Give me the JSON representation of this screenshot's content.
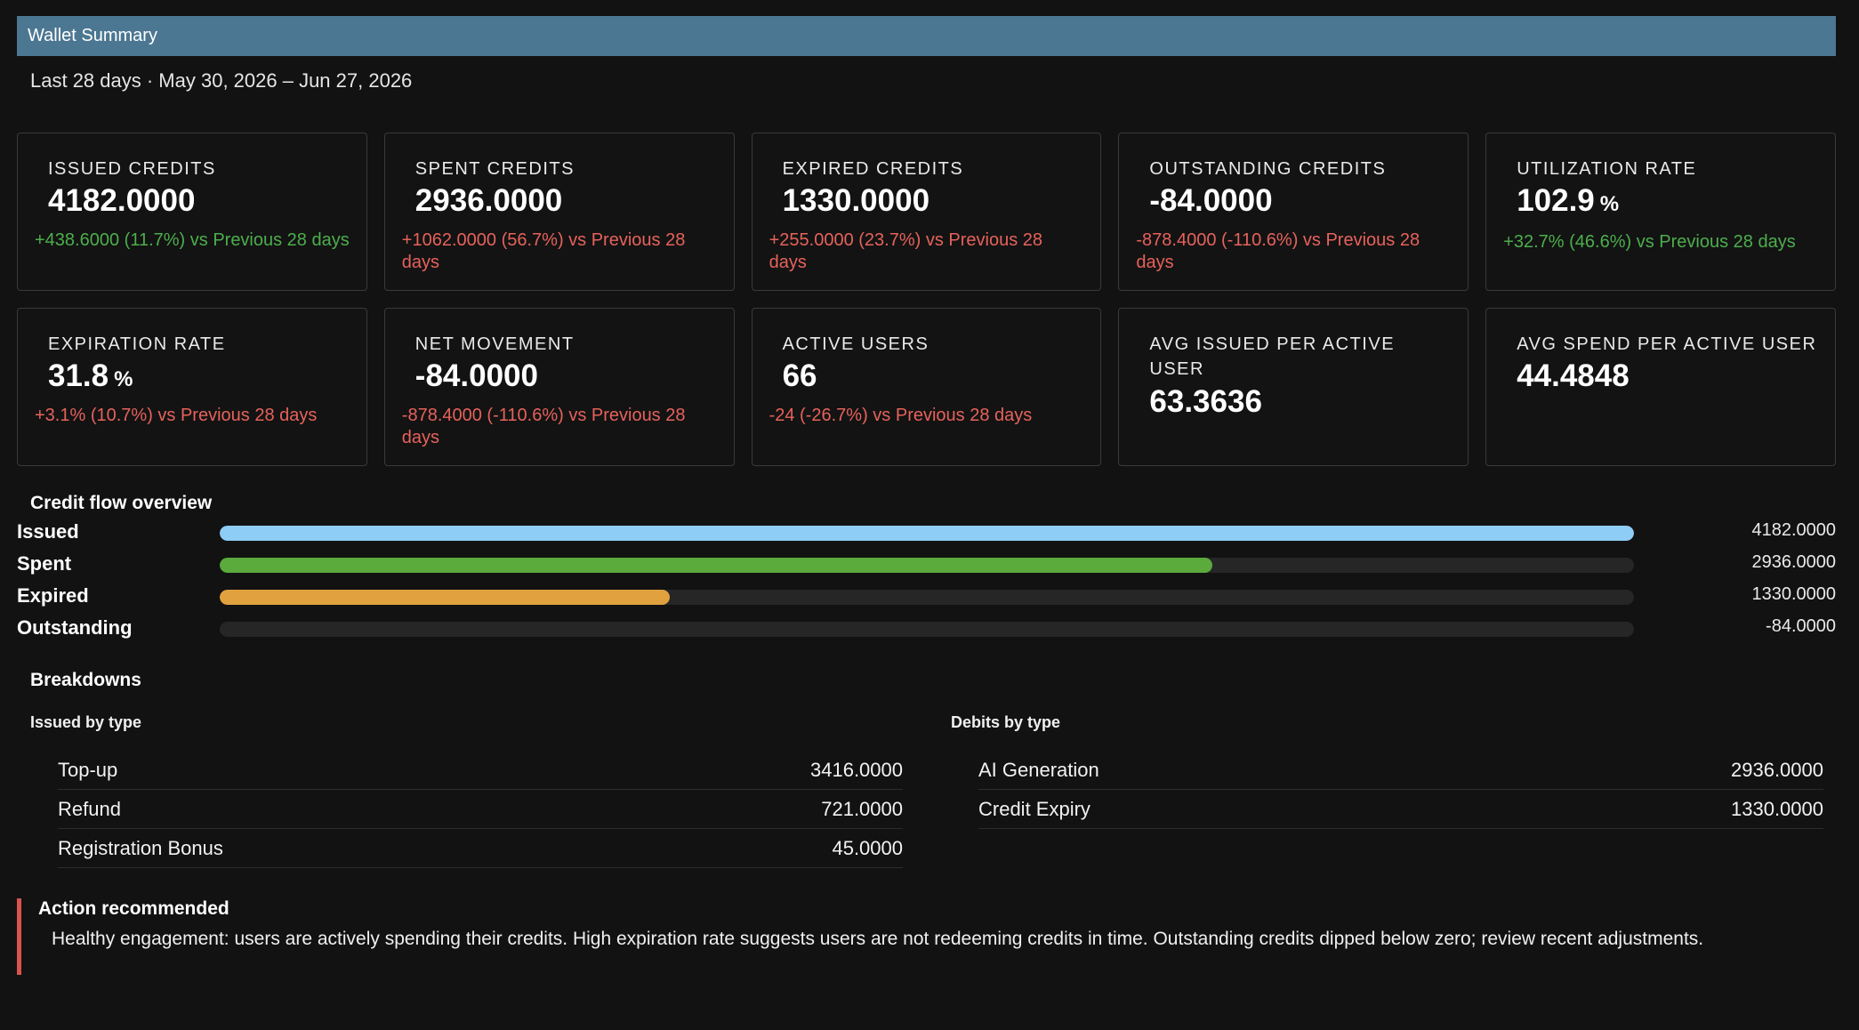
{
  "header": {
    "title": "Wallet Summary"
  },
  "period": "Last 28 days · May 30, 2026 – Jun 27, 2026",
  "cards": [
    {
      "label": "ISSUED CREDITS",
      "value": "4182.0000",
      "unit": "",
      "delta": "+438.6000 (11.7%) vs Previous 28 days",
      "trend": "positive"
    },
    {
      "label": "SPENT CREDITS",
      "value": "2936.0000",
      "unit": "",
      "delta": "+1062.0000 (56.7%) vs Previous 28 days",
      "trend": "negative"
    },
    {
      "label": "EXPIRED CREDITS",
      "value": "1330.0000",
      "unit": "",
      "delta": "+255.0000 (23.7%) vs Previous 28 days",
      "trend": "negative"
    },
    {
      "label": "OUTSTANDING CREDITS",
      "value": "-84.0000",
      "unit": "",
      "delta": "-878.4000 (-110.6%) vs Previous 28 days",
      "trend": "negative"
    },
    {
      "label": "UTILIZATION RATE",
      "value": "102.9",
      "unit": "%",
      "delta": "+32.7% (46.6%) vs Previous 28 days",
      "trend": "positive"
    },
    {
      "label": "EXPIRATION RATE",
      "value": "31.8",
      "unit": "%",
      "delta": "+3.1% (10.7%) vs Previous 28 days",
      "trend": "negative"
    },
    {
      "label": "NET MOVEMENT",
      "value": "-84.0000",
      "unit": "",
      "delta": "-878.4000 (-110.6%) vs Previous 28 days",
      "trend": "negative"
    },
    {
      "label": "ACTIVE USERS",
      "value": "66",
      "unit": "",
      "delta": "-24 (-26.7%) vs Previous 28 days",
      "trend": "negative"
    },
    {
      "label": "AVG ISSUED PER ACTIVE USER",
      "value": "63.3636",
      "unit": "",
      "delta": "",
      "trend": "none"
    },
    {
      "label": "AVG SPEND PER ACTIVE USER",
      "value": "44.4848",
      "unit": "",
      "delta": "",
      "trend": "none"
    }
  ],
  "flow": {
    "title": "Credit flow overview",
    "rows": [
      {
        "label": "Issued",
        "value": "4182.0000",
        "fraction": 1.0,
        "color": "#8ecdf5"
      },
      {
        "label": "Spent",
        "value": "2936.0000",
        "fraction": 0.702,
        "color": "#5aaa3c"
      },
      {
        "label": "Expired",
        "value": "1330.0000",
        "fraction": 0.318,
        "color": "#e0a13e"
      },
      {
        "label": "Outstanding",
        "value": "-84.0000",
        "fraction": 0.0,
        "color": "#555555"
      }
    ]
  },
  "breakdowns": {
    "title": "Breakdowns",
    "issued": {
      "heading": "Issued by type",
      "rows": [
        {
          "label": "Top-up",
          "value": "3416.0000"
        },
        {
          "label": "Refund",
          "value": "721.0000"
        },
        {
          "label": "Registration Bonus",
          "value": "45.0000"
        }
      ]
    },
    "debits": {
      "heading": "Debits by type",
      "rows": [
        {
          "label": "AI Generation",
          "value": "2936.0000"
        },
        {
          "label": "Credit Expiry",
          "value": "1330.0000"
        }
      ]
    }
  },
  "alert": {
    "title": "Action recommended",
    "text": "Healthy engagement: users are actively spending their credits. High expiration rate suggests users are not redeeming credits in time. Outstanding credits dipped below zero; review recent adjustments.",
    "color": "#d9534f"
  },
  "colors": {
    "positive": "#4cae4c",
    "negative": "#e6625b",
    "header": "#4c7792"
  }
}
